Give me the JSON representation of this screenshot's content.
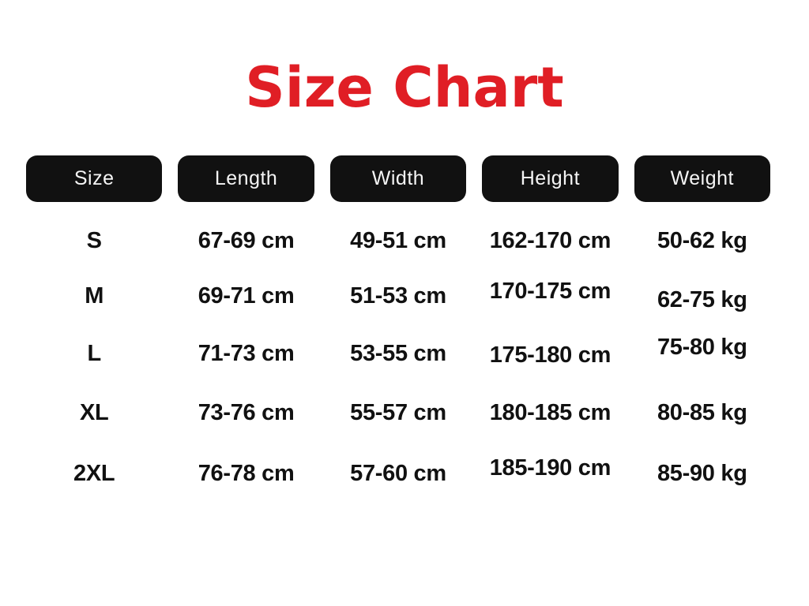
{
  "page": {
    "title": "Size Chart"
  },
  "colors": {
    "title_red": "#e01e25",
    "pill_black": "#111111",
    "pill_text": "#ffffff",
    "cell_text": "#111111",
    "background": "#ffffff"
  },
  "chart_data": {
    "type": "table",
    "title": "Size Chart",
    "columns": [
      "Size",
      "Length",
      "Width",
      "Height",
      "Weight"
    ],
    "rows": [
      [
        "S",
        "67-69 cm",
        "49-51 cm",
        "162-170 cm",
        "50-62 kg"
      ],
      [
        "M",
        "69-71 cm",
        "51-53 cm",
        "170-175 cm",
        "62-75 kg"
      ],
      [
        "L",
        "71-73 cm",
        "53-55 cm",
        "175-180 cm",
        "75-80 kg"
      ],
      [
        "XL",
        "73-76 cm",
        "55-57 cm",
        "180-185 cm",
        "80-85 kg"
      ],
      [
        "2XL",
        "76-78 cm",
        "57-60 cm",
        "185-190 cm",
        "85-90 kg"
      ]
    ]
  }
}
